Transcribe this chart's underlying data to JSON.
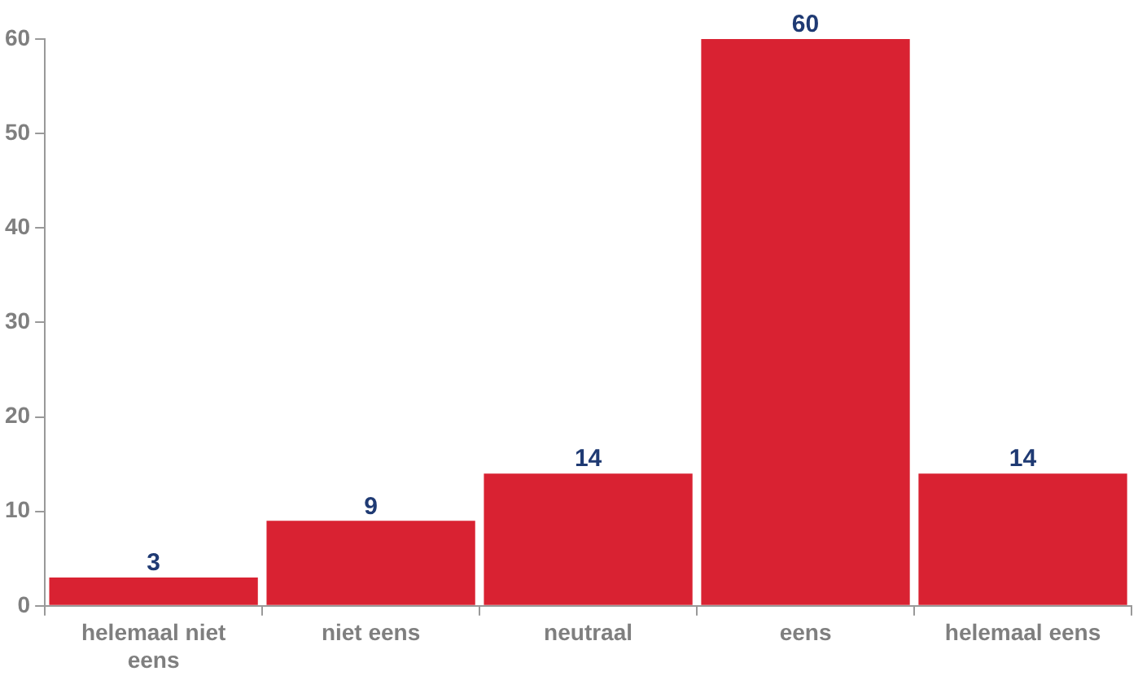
{
  "chart_data": {
    "type": "bar",
    "categories": [
      "helemaal niet eens",
      "niet eens",
      "neutraal",
      "eens",
      "helemaal eens"
    ],
    "values": [
      3,
      9,
      14,
      60,
      14
    ],
    "color": "#d92232",
    "ylim": [
      0,
      60
    ],
    "yticks": [
      0,
      10,
      20,
      30,
      40,
      50,
      60
    ],
    "grid": false,
    "legend": false,
    "data_labels": true
  }
}
